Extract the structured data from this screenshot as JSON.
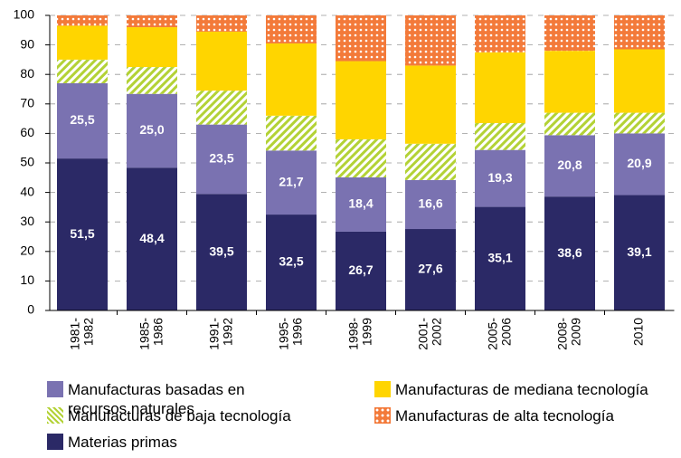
{
  "chart_data": {
    "type": "stacked_bar",
    "categories": [
      "1981-1982",
      "1985-1986",
      "1991-1992",
      "1995-1996",
      "1998-1999",
      "2001-2002",
      "2005-2006",
      "2008-2009",
      "2010"
    ],
    "series": [
      {
        "name": "Materias primas",
        "color": "#2b2966",
        "values": [
          51.5,
          48.4,
          39.5,
          32.5,
          26.7,
          27.6,
          35.1,
          38.6,
          39.1
        ],
        "value_labels": [
          "51,5",
          "48,4",
          "39,5",
          "32,5",
          "26,7",
          "27,6",
          "35,1",
          "38,6",
          "39,1"
        ]
      },
      {
        "name": "Manufacturas basadas en recursos naturales",
        "color": "#7a72b1",
        "values": [
          25.5,
          25.0,
          23.5,
          21.7,
          18.4,
          16.6,
          19.3,
          20.8,
          20.9
        ],
        "value_labels": [
          "25,5",
          "25,0",
          "23,5",
          "21,7",
          "18,4",
          "16,6",
          "19,3",
          "20,8",
          "20,9"
        ]
      },
      {
        "name": "Manufacturas de baja tecnología",
        "color": "#b3d236",
        "pattern": "stripes",
        "values": [
          8.0,
          9.1,
          11.5,
          11.8,
          12.9,
          12.3,
          9.1,
          7.6,
          7.0
        ]
      },
      {
        "name": "Manufacturas de mediana tecnología",
        "color": "#ffd500",
        "values": [
          11.5,
          13.5,
          20.0,
          24.5,
          26.5,
          26.5,
          24.0,
          21.0,
          21.5
        ]
      },
      {
        "name": "Manufacturas de alta tecnología",
        "color": "#f37a3a",
        "pattern": "dots",
        "values": [
          3.5,
          4.0,
          5.5,
          9.5,
          15.5,
          17.0,
          12.5,
          12.0,
          11.5
        ]
      }
    ],
    "ylim": [
      0,
      100
    ],
    "yticks": [
      0,
      10,
      20,
      30,
      40,
      50,
      60,
      70,
      80,
      90,
      100
    ],
    "grid": true
  }
}
